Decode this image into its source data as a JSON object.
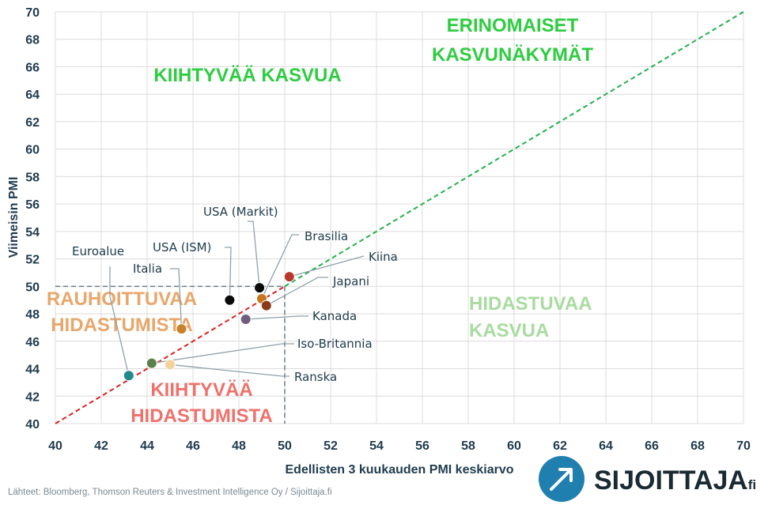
{
  "chart_data": {
    "type": "scatter",
    "xlabel": "Edellisten 3 kuukauden PMI keskiarvo",
    "ylabel": "Viimeisin PMI",
    "xlim": [
      40,
      70
    ],
    "ylim": [
      40,
      70
    ],
    "xticks": [
      "40",
      "42",
      "44",
      "46",
      "48",
      "50",
      "52",
      "54",
      "56",
      "58",
      "60",
      "62",
      "64",
      "66",
      "68",
      "70"
    ],
    "yticks": [
      "40",
      "42",
      "44",
      "46",
      "48",
      "50",
      "52",
      "54",
      "56",
      "58",
      "60",
      "62",
      "64",
      "66",
      "68",
      "70"
    ],
    "grid": true,
    "points": [
      {
        "name": "Euroalue",
        "x": 43.2,
        "y": 43.5,
        "color": "#1e8a8a"
      },
      {
        "name": "Ranska",
        "x": 45.0,
        "y": 44.3,
        "color": "#f3d29c"
      },
      {
        "name": "Iso-Britannia",
        "x": 44.2,
        "y": 44.4,
        "color": "#5b7f4a"
      },
      {
        "name": "Italia",
        "x": 45.5,
        "y": 46.9,
        "color": "#c9822a"
      },
      {
        "name": "USA (ISM)",
        "x": 47.6,
        "y": 49.0,
        "color": "#0a0a0a"
      },
      {
        "name": "Kanada",
        "x": 48.3,
        "y": 47.6,
        "color": "#6e5d7e"
      },
      {
        "name": "USA (Markit)",
        "x": 48.9,
        "y": 49.9,
        "color": "#0a0a0a"
      },
      {
        "name": "Brasilia",
        "x": 49.0,
        "y": 49.1,
        "color": "#c97520"
      },
      {
        "name": "Japani",
        "x": 49.2,
        "y": 48.6,
        "color": "#8b3a1a"
      },
      {
        "name": "Kiina",
        "x": 50.2,
        "y": 50.7,
        "color": "#b8382a"
      }
    ],
    "reference_lines": {
      "diagonal": {
        "from": [
          40,
          40
        ],
        "to": [
          70,
          70
        ],
        "split_at": 50,
        "color_below": "#e02020",
        "color_above": "#22b24c"
      },
      "threshold": 50
    },
    "zones": [
      {
        "text_lines": [
          "KIIHTYVÄÄ KASVUA"
        ],
        "color": "#2ecc40"
      },
      {
        "text_lines": [
          "ERINOMAISET",
          "KASVUNÄKYMÄT"
        ],
        "color": "#2ecc40"
      },
      {
        "text_lines": [
          "HIDASTUVAA",
          "KASVUA"
        ],
        "color": "#a8dba0"
      },
      {
        "text_lines": [
          "RAUHOITTUVAA",
          "HIDASTUMISTA"
        ],
        "color": "#e8a66a"
      },
      {
        "text_lines": [
          "KIIHTYVÄÄ",
          "HIDASTUMISTA"
        ],
        "color": "#f0706a"
      }
    ]
  },
  "source_text": "Lähteet: Bloomberg, Thomson Reuters & Investment Intelligence Oy / Sijoittaja.fi",
  "brand": {
    "name": "SIJOITTAJA",
    "suffix": ".fi",
    "icon": "arrow-up-right-circle-icon",
    "icon_color": "#1f7fae"
  }
}
